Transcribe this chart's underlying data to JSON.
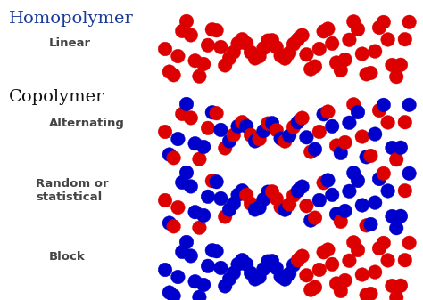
{
  "background_color": "#ffffff",
  "title_homopolymer": "Homopolymer",
  "title_copolymer": "Copolymer",
  "label_linear": "Linear",
  "label_alternating": "Alternating",
  "label_random": "Random or\nstatistical",
  "label_block": "Block",
  "red": "#dd0000",
  "blue": "#0000cc",
  "title_fontsize": 14,
  "label_fontsize": 9.5,
  "figsize": [
    4.74,
    3.37
  ],
  "dpi": 100
}
